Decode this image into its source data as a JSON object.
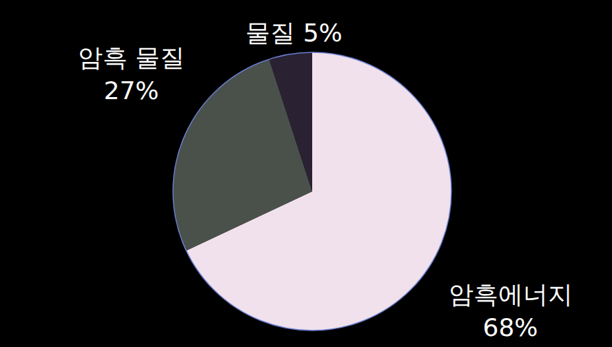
{
  "chart_data": {
    "type": "pie",
    "categories": [
      "암흑에너지",
      "암흑 물질",
      "물질"
    ],
    "values": [
      68,
      27,
      5
    ],
    "value_labels": [
      "68%",
      "27%",
      "5%"
    ],
    "colors": [
      "#f1e1ec",
      "#4a514b",
      "#2a2233"
    ],
    "data_labels": true
  }
}
